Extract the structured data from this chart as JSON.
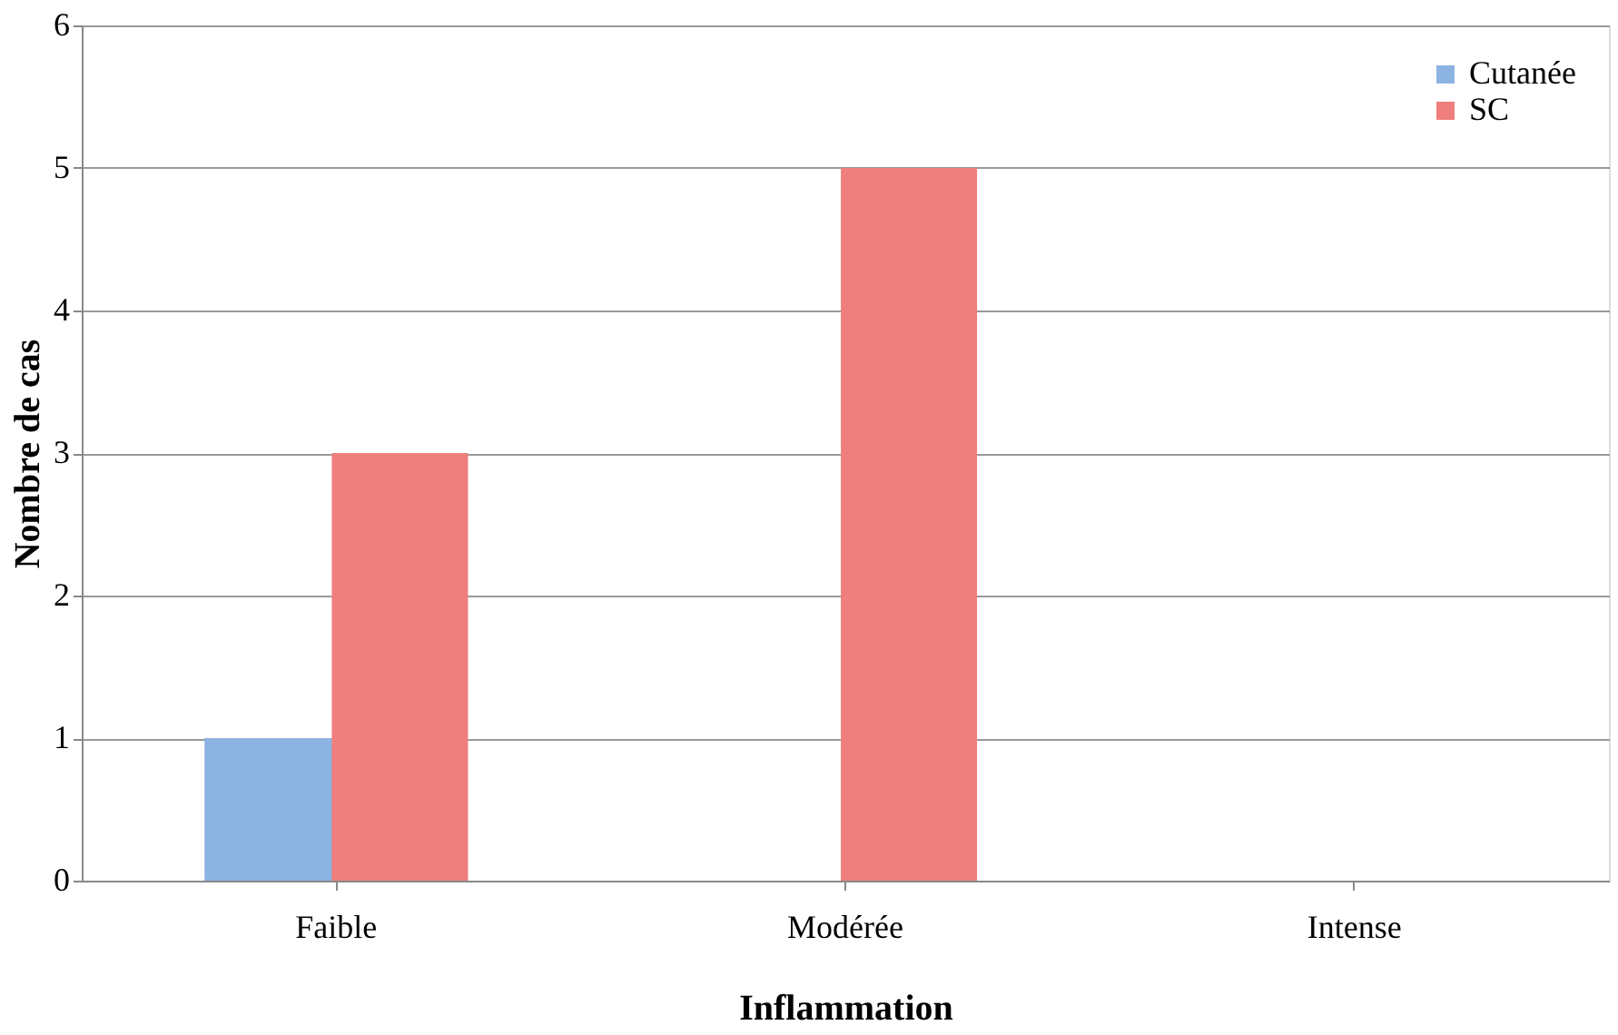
{
  "chart_data": {
    "type": "bar",
    "xlabel": "Inflammation",
    "ylabel": "Nombre de cas",
    "categories": [
      "Faible",
      "Modérée",
      "Intense"
    ],
    "series": [
      {
        "name": "Cutanée",
        "color": "#8db3e2",
        "values": [
          1,
          0,
          0
        ]
      },
      {
        "name": "SC",
        "color": "#ee7f7c",
        "values": [
          3,
          5,
          0
        ]
      }
    ],
    "ylim": [
      0,
      6
    ],
    "yticks": [
      0,
      1,
      2,
      3,
      4,
      5,
      6
    ],
    "grid": "y",
    "legend": "top right"
  }
}
